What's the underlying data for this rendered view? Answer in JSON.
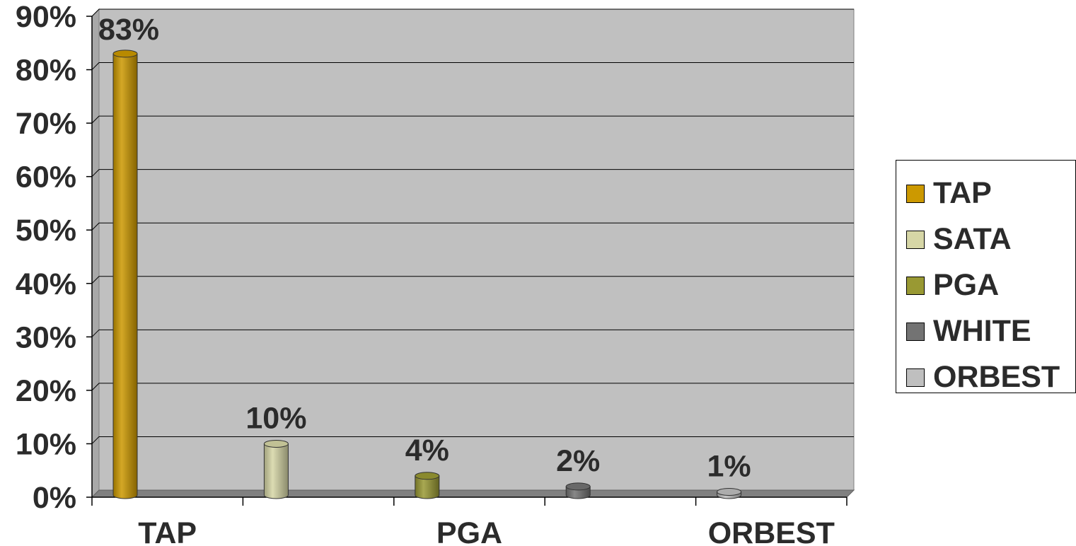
{
  "chart_data": {
    "type": "bar",
    "title": "",
    "xlabel": "",
    "ylabel": "",
    "ylim": [
      0,
      90
    ],
    "y_ticks": [
      0,
      10,
      20,
      30,
      40,
      50,
      60,
      70,
      80,
      90
    ],
    "y_tick_labels": [
      "0%",
      "10%",
      "20%",
      "30%",
      "40%",
      "50%",
      "60%",
      "70%",
      "80%",
      "90%"
    ],
    "categories": [
      "TAP",
      "SATA",
      "PGA",
      "WHITE",
      "ORBEST"
    ],
    "x_tick_labels_shown": [
      "TAP",
      "",
      "PGA",
      "",
      "ORBEST"
    ],
    "values": [
      83,
      10,
      4,
      2,
      1
    ],
    "data_labels": [
      "83%",
      "10%",
      "4%",
      "2%",
      "1%"
    ],
    "grid": true,
    "legend_position": "right",
    "style": "3d-cylinder",
    "plot_background": "#c0c0c0",
    "colors": [
      "#cc9900",
      "#d6d6a6",
      "#999933",
      "#737373",
      "#bfbfbf"
    ],
    "legend": [
      {
        "label": "TAP",
        "color": "#cc9900"
      },
      {
        "label": "SATA",
        "color": "#d6d6a6"
      },
      {
        "label": "PGA",
        "color": "#999933"
      },
      {
        "label": "WHITE",
        "color": "#737373"
      },
      {
        "label": "ORBEST",
        "color": "#bfbfbf"
      }
    ]
  }
}
